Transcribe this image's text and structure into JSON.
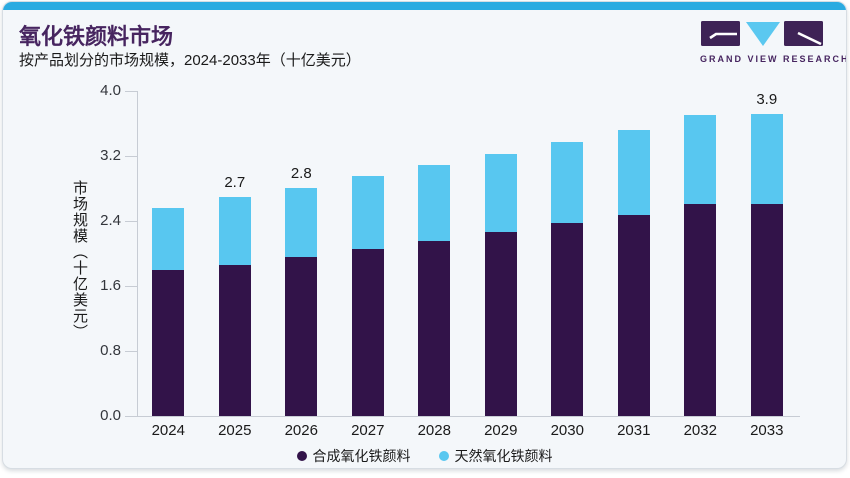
{
  "header": {
    "title": "氧化铁颜料市场",
    "subtitle": "按产品划分的市场规模，2024-2033年（十亿美元）",
    "brand": "GRAND VIEW RESEARCH"
  },
  "colors": {
    "top_strip": "#2babe1",
    "title": "#472560",
    "card_bg": "#f4f7fa",
    "axis": "#c7ccd4",
    "synthetic_bar": "#321349",
    "natural_bar": "#58c7f0",
    "logo_purple": "#3e2356",
    "logo_blue": "#5bc8f0"
  },
  "chart_data": {
    "type": "bar",
    "stacked": true,
    "title": "氧化铁颜料市场",
    "subtitle": "按产品划分的市场规模，2024-2033年（十亿美元）",
    "ylabel": "市场规模（十亿美元）",
    "xlabel": "",
    "categories": [
      "2024",
      "2025",
      "2026",
      "2027",
      "2028",
      "2029",
      "2030",
      "2031",
      "2032",
      "2033"
    ],
    "series": [
      {
        "name": "合成氧化铁颜料",
        "color": "#321349",
        "values": [
          1.8,
          1.86,
          1.96,
          2.06,
          2.15,
          2.26,
          2.37,
          2.48,
          2.61,
          2.74
        ]
      },
      {
        "name": "天然氧化铁颜料",
        "color": "#58c7f0",
        "values": [
          0.76,
          0.84,
          0.85,
          0.89,
          0.94,
          0.97,
          1.0,
          1.04,
          1.09,
          1.16
        ]
      }
    ],
    "totals": [
      2.56,
      2.7,
      2.81,
      2.95,
      3.09,
      3.23,
      3.37,
      3.52,
      3.7,
      3.9
    ],
    "point_labels": {
      "2025": "2.7",
      "2026": "2.8",
      "2033": "3.9"
    },
    "yticks": [
      "0.0",
      "0.8",
      "1.6",
      "2.4",
      "3.2",
      "4.0"
    ],
    "ylim": [
      0,
      4.0
    ],
    "grid": false,
    "legend_position": "bottom"
  }
}
